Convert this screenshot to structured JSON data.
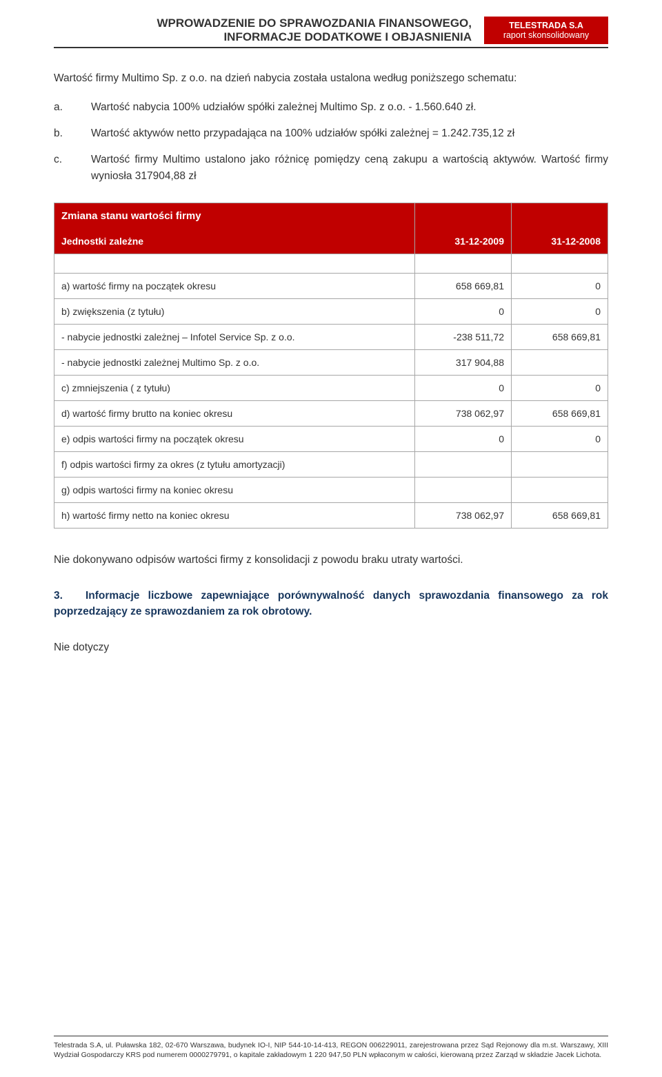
{
  "header": {
    "title_line1": "WPROWADZENIE DO SPRAWOZDANIA FINANSOWEGO,",
    "title_line2": "INFORMACJE DODATKOWE I OBJASNIENIA",
    "brand": "TELESTRADA S.A",
    "brand_sub": "raport skonsolidowany",
    "brand_bg": "#c00000",
    "brand_color": "#ffffff"
  },
  "intro": "Wartość firmy Multimo Sp. z o.o. na dzień nabycia została ustalona według poniższego schematu:",
  "list": [
    {
      "marker": "a.",
      "text": "Wartość nabycia 100% udziałów spółki zależnej Multimo Sp. z o.o. - 1.560.640 zł."
    },
    {
      "marker": "b.",
      "text": "Wartość aktywów netto przypadająca na 100% udziałów spółki zależnej = 1.242.735,12 zł"
    },
    {
      "marker": "c.",
      "text": "Wartość firmy Multimo ustalono jako różnicę pomiędzy ceną zakupu a wartością aktywów. Wartość firmy wyniosła 317904,88 zł"
    }
  ],
  "table": {
    "header_title": "Zmiana stanu wartości firmy",
    "header_sub": "Jednostki zależne",
    "col1": "31-12-2009",
    "col2": "31-12-2008",
    "header_bg": "#c00000",
    "header_color": "#ffffff",
    "border_color": "#a6a6a6",
    "rows": [
      {
        "label": "a) wartość firmy na początek okresu",
        "v1": "658 669,81",
        "v2": "0"
      },
      {
        "label": "b) zwiększenia (z tytułu)",
        "v1": "0",
        "v2": "0"
      },
      {
        "label": "- nabycie jednostki zależnej – Infotel Service Sp. z o.o.",
        "v1": "-238 511,72",
        "v2": "658 669,81"
      },
      {
        "label": "- nabycie jednostki zależnej Multimo Sp. z o.o.",
        "v1": "317 904,88",
        "v2": ""
      },
      {
        "label": "c) zmniejszenia ( z tytułu)",
        "v1": "0",
        "v2": "0"
      },
      {
        "label": "d) wartość firmy brutto na koniec okresu",
        "v1": "738 062,97",
        "v2": "658 669,81"
      },
      {
        "label": "e) odpis wartości firmy na początek okresu",
        "v1": "0",
        "v2": "0"
      },
      {
        "label": "f) odpis wartości firmy za okres (z tytułu amortyzacji)",
        "v1": "",
        "v2": ""
      },
      {
        "label": "g) odpis wartości firmy na koniec okresu",
        "v1": "",
        "v2": ""
      },
      {
        "label": "h) wartość firmy netto na koniec okresu",
        "v1": "738 062,97",
        "v2": "658 669,81"
      }
    ]
  },
  "after_table": "Nie dokonywano odpisów wartości firmy z konsolidacji z powodu braku utraty wartości.",
  "section3": {
    "num": "3.",
    "text": "Informacje liczbowe zapewniające porównywalność danych sprawozdania finansowego za rok poprzedzający ze sprawozdaniem za rok obrotowy.",
    "color": "#17365d"
  },
  "not_applicable": "Nie dotyczy",
  "footer": "Telestrada S.A, ul. Puławska 182, 02-670 Warszawa, budynek IO-I, NIP 544-10-14-413, REGON 006229011, zarejestrowana przez Sąd Rejonowy dla m.st. Warszawy, XIII Wydział Gospodarczy KRS pod numerem 0000279791, o kapitale zakładowym 1 220 947,50 PLN wpłaconym w całości, kierowaną przez Zarząd w składzie Jacek Lichota."
}
